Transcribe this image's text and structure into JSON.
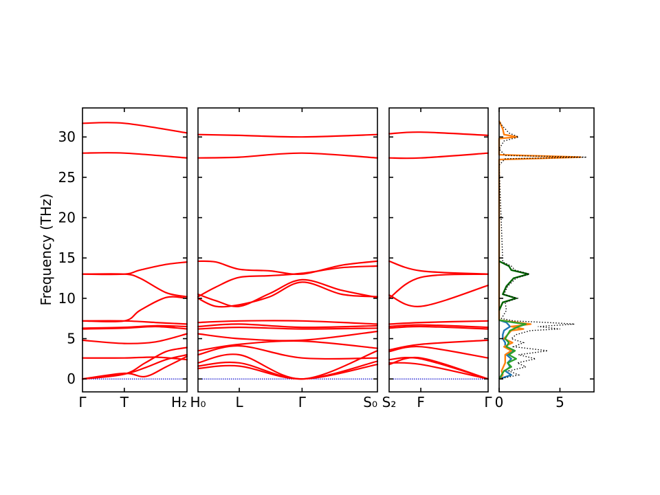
{
  "chart_data": {
    "type": "line",
    "ylabel": "Frequency (THz)",
    "ylim": [
      -1.6,
      33.6
    ],
    "yticks": [
      0,
      5,
      10,
      15,
      20,
      25,
      30
    ],
    "colors": {
      "bands": "#ff0000",
      "zero": "#0000cc",
      "dos_total": "#000000",
      "dos_projected": [
        "#1f77b4",
        "#ff7f0e",
        "#2ca02c",
        "#006400"
      ]
    },
    "band_panels": [
      {
        "id": "panel1",
        "xticks": [
          {
            "pos": 0,
            "label": "Γ"
          },
          {
            "pos": 0.4,
            "label": "T"
          },
          {
            "pos": 1,
            "label": "H₂"
          }
        ],
        "series": [
          {
            "x": [
              0,
              0.4,
              1
            ],
            "y": [
              31.7,
              31.7,
              30.5
            ]
          },
          {
            "x": [
              0,
              0.4,
              1
            ],
            "y": [
              28.0,
              28.0,
              27.4
            ]
          },
          {
            "x": [
              0,
              0.4,
              0.55,
              0.8,
              1
            ],
            "y": [
              13.0,
              13.0,
              13.5,
              14.2,
              14.5
            ]
          },
          {
            "x": [
              0,
              0.4,
              0.55,
              0.8,
              1
            ],
            "y": [
              13.0,
              13.0,
              12.5,
              10.7,
              10.2
            ]
          },
          {
            "x": [
              0,
              0.4,
              0.55,
              0.8,
              1
            ],
            "y": [
              7.2,
              7.2,
              8.5,
              10.1,
              10.0
            ]
          },
          {
            "x": [
              0,
              0.4,
              0.7,
              1
            ],
            "y": [
              7.2,
              7.2,
              7.0,
              6.8
            ]
          },
          {
            "x": [
              0,
              0.4,
              0.7,
              1
            ],
            "y": [
              6.3,
              6.4,
              6.6,
              6.5
            ]
          },
          {
            "x": [
              0,
              0.4,
              0.7,
              1
            ],
            "y": [
              6.2,
              6.3,
              6.5,
              6.2
            ]
          },
          {
            "x": [
              0,
              0.4,
              0.7,
              1
            ],
            "y": [
              4.8,
              4.4,
              4.6,
              5.6
            ]
          },
          {
            "x": [
              0,
              0.4,
              0.7,
              1
            ],
            "y": [
              2.6,
              2.6,
              2.7,
              2.4
            ]
          },
          {
            "x": [
              0,
              0.4,
              0.6,
              0.8,
              1
            ],
            "y": [
              0,
              0.6,
              1.4,
              2.4,
              3.0
            ]
          },
          {
            "x": [
              0,
              0.4,
              0.6,
              0.8,
              1
            ],
            "y": [
              0,
              0.6,
              2.0,
              3.4,
              3.9
            ]
          },
          {
            "x": [
              0,
              0.4,
              0.6,
              0.8,
              1
            ],
            "y": [
              0,
              0.7,
              0.3,
              1.5,
              2.8
            ]
          }
        ]
      },
      {
        "id": "panel2",
        "xticks": [
          {
            "pos": 0,
            "label": "H₀"
          },
          {
            "pos": 0.23,
            "label": "L"
          },
          {
            "pos": 0.58,
            "label": "Γ"
          },
          {
            "pos": 1,
            "label": "S₀"
          }
        ],
        "series": [
          {
            "x": [
              0,
              0.23,
              0.58,
              1
            ],
            "y": [
              30.3,
              30.2,
              30.0,
              30.3
            ]
          },
          {
            "x": [
              0,
              0.23,
              0.58,
              1
            ],
            "y": [
              27.4,
              27.5,
              28.0,
              27.4
            ]
          },
          {
            "x": [
              0,
              0.1,
              0.23,
              0.4,
              0.58,
              0.8,
              1
            ],
            "y": [
              14.6,
              14.5,
              13.6,
              13.4,
              13.0,
              14.1,
              14.6
            ]
          },
          {
            "x": [
              0,
              0.1,
              0.23,
              0.4,
              0.58,
              0.8,
              1
            ],
            "y": [
              10.2,
              11.4,
              12.6,
              12.8,
              13.1,
              13.8,
              14.0
            ]
          },
          {
            "x": [
              0,
              0.1,
              0.23,
              0.4,
              0.58,
              0.8,
              1
            ],
            "y": [
              10.5,
              9.7,
              9.0,
              10.6,
              12.3,
              11.0,
              10.1
            ]
          },
          {
            "x": [
              0,
              0.1,
              0.23,
              0.4,
              0.58,
              0.8,
              1
            ],
            "y": [
              10.0,
              9.0,
              9.2,
              10.2,
              12.0,
              10.5,
              10.2
            ]
          },
          {
            "x": [
              0,
              0.23,
              0.58,
              1
            ],
            "y": [
              7.0,
              7.2,
              7.2,
              6.8
            ]
          },
          {
            "x": [
              0,
              0.23,
              0.58,
              1
            ],
            "y": [
              6.5,
              6.8,
              6.4,
              6.6
            ]
          },
          {
            "x": [
              0,
              0.23,
              0.58,
              1
            ],
            "y": [
              6.2,
              6.4,
              6.2,
              6.3
            ]
          },
          {
            "x": [
              0,
              0.23,
              0.58,
              1
            ],
            "y": [
              5.6,
              5.0,
              4.8,
              5.9
            ]
          },
          {
            "x": [
              0,
              0.23,
              0.58,
              1
            ],
            "y": [
              3.5,
              4.3,
              4.7,
              3.8
            ]
          },
          {
            "x": [
              0,
              0.23,
              0.58,
              1
            ],
            "y": [
              3.0,
              4.1,
              2.6,
              2.6
            ]
          },
          {
            "x": [
              0,
              0.23,
              0.58,
              1
            ],
            "y": [
              2.0,
              3.0,
              0.0,
              3.5
            ]
          },
          {
            "x": [
              0,
              0.23,
              0.58,
              1
            ],
            "y": [
              1.6,
              2.0,
              0.0,
              2.2
            ]
          },
          {
            "x": [
              0,
              0.23,
              0.58,
              1
            ],
            "y": [
              1.3,
              1.6,
              0.0,
              1.8
            ]
          }
        ]
      },
      {
        "id": "panel3",
        "xticks": [
          {
            "pos": 0,
            "label": "S₂"
          },
          {
            "pos": 0.32,
            "label": "F"
          },
          {
            "pos": 1,
            "label": "Γ"
          }
        ],
        "series": [
          {
            "x": [
              0,
              0.32,
              1
            ],
            "y": [
              30.4,
              30.6,
              30.2
            ]
          },
          {
            "x": [
              0,
              0.32,
              1
            ],
            "y": [
              27.4,
              27.4,
              28.0
            ]
          },
          {
            "x": [
              0,
              0.32,
              1
            ],
            "y": [
              14.6,
              13.4,
              13.0
            ]
          },
          {
            "x": [
              0,
              0.32,
              1
            ],
            "y": [
              10.0,
              12.6,
              13.0
            ]
          },
          {
            "x": [
              0,
              0.32,
              1
            ],
            "y": [
              10.4,
              9.0,
              11.6
            ]
          },
          {
            "x": [
              0,
              0.32,
              1
            ],
            "y": [
              6.8,
              7.0,
              7.2
            ]
          },
          {
            "x": [
              0,
              0.32,
              1
            ],
            "y": [
              6.5,
              6.7,
              6.4
            ]
          },
          {
            "x": [
              0,
              0.32,
              1
            ],
            "y": [
              6.3,
              6.5,
              6.2
            ]
          },
          {
            "x": [
              0,
              0.32,
              1
            ],
            "y": [
              3.6,
              4.3,
              4.8
            ]
          },
          {
            "x": [
              0,
              0.32,
              1
            ],
            "y": [
              3.4,
              4.0,
              2.6
            ]
          },
          {
            "x": [
              0,
              0.32,
              1
            ],
            "y": [
              2.4,
              2.5,
              0.0
            ]
          },
          {
            "x": [
              0,
              0.32,
              1
            ],
            "y": [
              2.0,
              1.8,
              0.0
            ]
          },
          {
            "x": [
              0,
              0.32,
              1
            ],
            "y": [
              1.8,
              2.6,
              0.0
            ]
          }
        ]
      }
    ],
    "dos_panel": {
      "xlim": [
        0,
        7.8
      ],
      "xticks": [
        0,
        5
      ],
      "total": {
        "f": [
          0,
          0.5,
          1.0,
          1.5,
          2.0,
          2.5,
          3.0,
          3.5,
          4.0,
          4.5,
          5.0,
          5.5,
          6.0,
          6.2,
          6.5,
          6.8,
          7.0,
          7.2,
          7.5,
          8.5,
          9.5,
          10.0,
          10.5,
          11.5,
          12.5,
          13.0,
          13.5,
          14.0,
          14.5,
          26.5,
          27.3,
          27.5,
          27.7,
          28.5,
          29.5,
          30.0,
          30.5,
          31.0,
          31.5,
          32.0
        ],
        "d": [
          0,
          1.6,
          0.8,
          2.2,
          1.5,
          3.0,
          1.6,
          4.0,
          1.2,
          2.0,
          1.0,
          1.4,
          2.6,
          5.0,
          3.2,
          6.2,
          4.0,
          1.2,
          0.2,
          0.6,
          0.5,
          1.5,
          0.4,
          0.7,
          1.4,
          2.5,
          1.3,
          1.0,
          0.3,
          0,
          0.5,
          7.2,
          0.5,
          0,
          0.4,
          1.6,
          0.8,
          0.5,
          0.2,
          0
        ]
      },
      "projected": [
        {
          "f": [
            0,
            0.5,
            1.0,
            1.5,
            2.0,
            2.5,
            3.0,
            3.5,
            4.0,
            4.5,
            5.0,
            5.5,
            6.0,
            6.5,
            7.0,
            7.3
          ],
          "d": [
            0,
            1.0,
            0.5,
            0.9,
            0.7,
            1.0,
            0.6,
            1.2,
            0.5,
            0.5,
            0.3,
            0.3,
            0.4,
            0.9,
            0.6,
            0
          ]
        },
        {
          "f": [
            0,
            0.5,
            1.0,
            2.0,
            3.0,
            3.5,
            4.0,
            4.5,
            5.0,
            6.0,
            6.2,
            6.5,
            6.8,
            7.0,
            7.3,
            27.2,
            27.5,
            27.8,
            29.8,
            30.0,
            30.3,
            31.0,
            32.0
          ],
          "d": [
            0,
            0.3,
            0.2,
            0.5,
            0.5,
            1.0,
            0.4,
            1.1,
            0.4,
            1.0,
            2.0,
            1.0,
            2.6,
            1.5,
            0,
            0,
            6.7,
            0,
            0,
            1.5,
            0.4,
            0.3,
            0
          ]
        },
        {
          "f": [
            0,
            1.0,
            1.5,
            2.0,
            2.5,
            3.0,
            3.5,
            4.0,
            4.5,
            5.0,
            6.0,
            6.5,
            6.8,
            7.0,
            7.3
          ],
          "d": [
            0,
            0.4,
            1.0,
            0.7,
            1.4,
            0.8,
            1.3,
            0.6,
            0.8,
            0.5,
            0.9,
            1.6,
            2.2,
            1.2,
            0
          ]
        },
        {
          "f": [
            8.5,
            9.5,
            10.0,
            10.5,
            11.5,
            12.5,
            13.0,
            13.5,
            14.0,
            14.6
          ],
          "d": [
            0,
            0.3,
            1.4,
            0.3,
            0.6,
            1.2,
            2.4,
            1.0,
            0.8,
            0
          ]
        }
      ]
    }
  }
}
